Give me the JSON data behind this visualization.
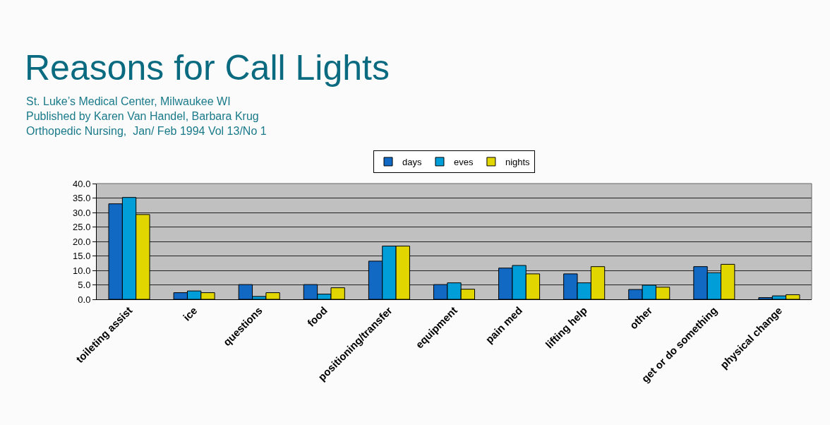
{
  "chart_data": {
    "type": "bar",
    "title": "Reasons for Call Lights",
    "subtitle": "St. Luke’s Medical Center, Milwaukee WI\nPublished by Karen Van Handel, Barbara Krug\nOrthopedic Nursing,  Jan/ Feb 1994 Vol 13/No 1",
    "categories": [
      "toileting assist",
      "ice",
      "questions",
      "food",
      "positioning/transfer",
      "equipment",
      "pain med",
      "lifting help",
      "other",
      "get or do something",
      "physical change"
    ],
    "series": [
      {
        "name": "days",
        "color": "#1269c4",
        "values": [
          33,
          2.3,
          5.1,
          5.1,
          13.2,
          5.1,
          10.8,
          8.8,
          3.4,
          11.3,
          0.6
        ]
      },
      {
        "name": "eves",
        "color": "#009ed8",
        "values": [
          35.2,
          2.9,
          1.0,
          1.8,
          18.4,
          5.7,
          11.7,
          5.7,
          4.9,
          9.2,
          1.2
        ]
      },
      {
        "name": "nights",
        "color": "#e2d600",
        "values": [
          29.3,
          2.3,
          2.3,
          4.0,
          18.4,
          3.5,
          8.8,
          11.3,
          4.2,
          12.1,
          1.6
        ]
      }
    ],
    "ylim": [
      0,
      40
    ],
    "yticks": [
      {
        "value": 0,
        "label": "0.0"
      },
      {
        "value": 5,
        "label": "5.0"
      },
      {
        "value": 10,
        "label": "10.0"
      },
      {
        "value": 15,
        "label": "15.0"
      },
      {
        "value": 20,
        "label": "20.0"
      },
      {
        "value": 25,
        "label": "25.0"
      },
      {
        "value": 30,
        "label": "30.0"
      },
      {
        "value": 35,
        "label": "35.0"
      },
      {
        "value": 40,
        "label": "40.0"
      }
    ],
    "grid": "y",
    "legend": "top"
  }
}
